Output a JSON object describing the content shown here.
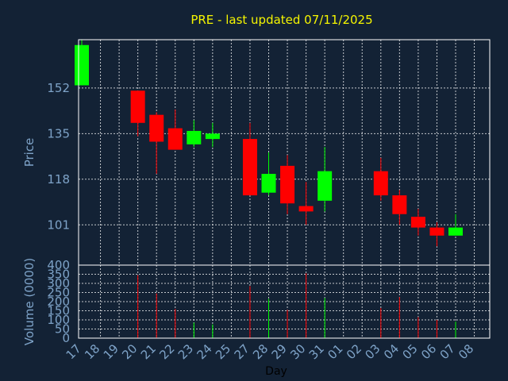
{
  "chart_data": {
    "type": "candlestick",
    "title": "PRE - last updated 07/11/2025",
    "xlabel": "Day",
    "ylabel": "Price",
    "volume_label": "Volume (0000)",
    "x_ticks": [
      "17",
      "18",
      "19",
      "20",
      "21",
      "22",
      "23",
      "24",
      "25",
      "27",
      "28",
      "29",
      "30",
      "31",
      "01",
      "02",
      "03",
      "04",
      "05",
      "06",
      "07",
      "08"
    ],
    "price_ticks": [
      101,
      118,
      135,
      152
    ],
    "price_range": [
      86,
      170
    ],
    "volume_ticks": [
      0,
      50,
      100,
      150,
      200,
      250,
      300,
      350,
      400
    ],
    "volume_range": [
      0,
      400
    ],
    "candles": [
      {
        "day": "17",
        "open": 153,
        "close": 168,
        "high": 170,
        "low": 153,
        "volume": 0
      },
      {
        "day": "20",
        "open": 151,
        "close": 139,
        "high": 151,
        "low": 134,
        "volume": 345
      },
      {
        "day": "21",
        "open": 142,
        "close": 132,
        "high": 143,
        "low": 120,
        "volume": 245
      },
      {
        "day": "22",
        "open": 137,
        "close": 129,
        "high": 144,
        "low": 129,
        "volume": 160
      },
      {
        "day": "23",
        "open": 131,
        "close": 136,
        "high": 140,
        "low": 130,
        "volume": 85
      },
      {
        "day": "24",
        "open": 133,
        "close": 135,
        "high": 139,
        "low": 130,
        "volume": 75
      },
      {
        "day": "27",
        "open": 133,
        "close": 112,
        "high": 139,
        "low": 112,
        "volume": 285
      },
      {
        "day": "28",
        "open": 113,
        "close": 120,
        "high": 128,
        "low": 112,
        "volume": 215
      },
      {
        "day": "29",
        "open": 123,
        "close": 109,
        "high": 127,
        "low": 105,
        "volume": 155
      },
      {
        "day": "30",
        "open": 108,
        "close": 106,
        "high": 117,
        "low": 101,
        "volume": 355
      },
      {
        "day": "31",
        "open": 110,
        "close": 121,
        "high": 130,
        "low": 106,
        "volume": 220
      },
      {
        "day": "03",
        "open": 121,
        "close": 112,
        "high": 126,
        "low": 110,
        "volume": 165
      },
      {
        "day": "04",
        "open": 112,
        "close": 105,
        "high": 114,
        "low": 101,
        "volume": 225
      },
      {
        "day": "05",
        "open": 104,
        "close": 100,
        "high": 107,
        "low": 97,
        "volume": 115
      },
      {
        "day": "06",
        "open": 100,
        "close": 97,
        "high": 102,
        "low": 93,
        "volume": 100
      },
      {
        "day": "07",
        "open": 97,
        "close": 100,
        "high": 105,
        "low": 97,
        "volume": 90
      }
    ],
    "grid": true,
    "colors": {
      "background": "#132235",
      "up": "#00ff00",
      "down": "#ff0000",
      "title": "#f5f500",
      "axis_text": "#7ea3c8",
      "grid": "#ffffff"
    }
  }
}
